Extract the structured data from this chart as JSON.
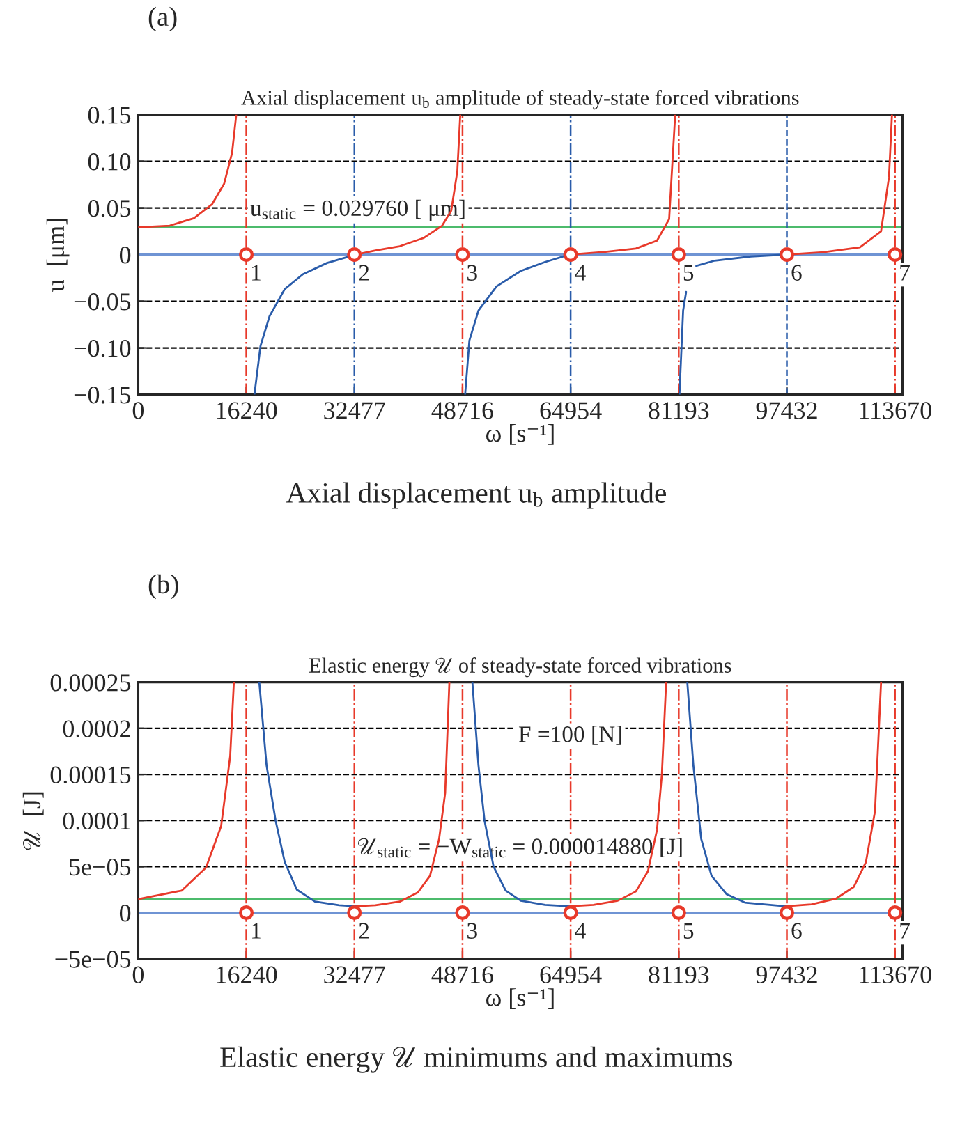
{
  "chart_data": [
    {
      "type": "line",
      "title": "Axial displacement u$_{b}$ amplitude of steady-state forced vibrations",
      "xlabel": "ω [s⁻¹]",
      "ylabel": "u  [μm]",
      "xlim": [
        0,
        114800
      ],
      "xticks": [
        0,
        16240,
        32477,
        48716,
        64954,
        81193,
        97432,
        113670
      ],
      "ylim": [
        -0.15,
        0.15
      ],
      "yticks": [
        {
          "value": -0.15,
          "label": "−0.15"
        },
        {
          "value": -0.1,
          "label": "−0.10"
        },
        {
          "value": -0.05,
          "label": "−0.05"
        },
        0,
        0.05,
        {
          "value": 0.1,
          "label": "0.10"
        },
        0.15
      ],
      "grid": "y",
      "series": [
        {
          "color": "#e8392a",
          "x": [
            0,
            4730,
            8370,
            11100,
            12910,
            14100,
            14730,
            14731,
            32650,
            35650,
            39290,
            42930,
            45650,
            47020,
            47930,
            48380,
            48381,
            64750,
            70210,
            74750,
            77930,
            79750,
            80660,
            80661,
            97220,
            102950,
            108400,
            111580,
            112770,
            113220
          ],
          "values": [
            0.0292,
            0.031,
            0.039,
            0.054,
            0.076,
            0.109,
            0.15,
            null,
            0,
            0.0045,
            0.009,
            0.018,
            0.031,
            0.047,
            0.089,
            0.15,
            null,
            0,
            0.003,
            0.0065,
            0.015,
            0.038,
            0.15,
            null,
            0,
            0.0026,
            0.0078,
            0.025,
            0.083,
            0.15
          ]
        },
        {
          "color": "#2a5caa",
          "x": [
            17460,
            18370,
            19730,
            22010,
            24740,
            28370,
            32650,
            32651,
            49110,
            49750,
            51110,
            53840,
            57470,
            61110,
            64750,
            64751,
            81300,
            81850,
            82300,
            82301,
            83390,
            86580,
            92030,
            97220
          ],
          "values": [
            -0.15,
            -0.098,
            -0.066,
            -0.037,
            -0.021,
            -0.009,
            0,
            null,
            -0.15,
            -0.092,
            -0.06,
            -0.034,
            -0.0175,
            -0.008,
            0,
            null,
            -0.15,
            -0.06,
            -0.04,
            null,
            -0.013,
            -0.0065,
            -0.002,
            0
          ]
        },
        {
          "type": "scatter",
          "color": "#e8392a",
          "marker": "circle",
          "x": [
            16240,
            32477,
            48716,
            64954,
            81193,
            97432,
            113670
          ],
          "values": [
            0,
            0,
            0,
            0,
            0,
            0,
            0
          ]
        }
      ],
      "ref_lines": [
        {
          "axis": "y",
          "value": 0,
          "color": "#6f94d4",
          "line_style": "solid"
        },
        {
          "axis": "y",
          "value": 0.02976,
          "color": "#4cbb6c",
          "line_style": "solid"
        },
        {
          "axis": "x",
          "value": 16240,
          "color": "#e8392a",
          "line_style": "dashdot"
        },
        {
          "axis": "x",
          "value": 32477,
          "color": "#2a5caa",
          "line_style": "dashdot"
        },
        {
          "axis": "x",
          "value": 48716,
          "color": "#e8392a",
          "line_style": "dashdot"
        },
        {
          "axis": "x",
          "value": 64954,
          "color": "#2a5caa",
          "line_style": "dashdot"
        },
        {
          "axis": "x",
          "value": 81193,
          "color": "#e8392a",
          "line_style": "dashdot"
        },
        {
          "axis": "x",
          "value": 97432,
          "color": "#2a5caa",
          "line_style": "dashed"
        },
        {
          "axis": "x",
          "value": 113670,
          "color": "#e8392a",
          "line_style": "dashdot"
        }
      ],
      "annotations": [
        "(a)",
        "Axial displacement u$_{b}$ amplitude",
        {
          "text": "u$_{static}$ = 0.029760 [ μm]",
          "x": 16800,
          "y": 0.036
        },
        {
          "text": "1",
          "x": 16240,
          "y": 0
        },
        {
          "text": "2",
          "x": 32477,
          "y": 0
        },
        {
          "text": "3",
          "x": 48716,
          "y": 0
        },
        {
          "text": "4",
          "x": 64954,
          "y": 0
        },
        {
          "text": "5",
          "x": 81193,
          "y": 0
        },
        {
          "text": "6",
          "x": 97432,
          "y": 0
        },
        {
          "text": "7",
          "x": 113670,
          "y": 0
        }
      ]
    },
    {
      "type": "line",
      "title": "Elastic energy 𝒰 of steady-state forced vibrations",
      "xlabel": "ω [s⁻¹]",
      "ylabel": "𝒰  [J]",
      "xlim": [
        0,
        114800
      ],
      "xticks": [
        0,
        16240,
        32477,
        48716,
        64954,
        81193,
        97432,
        113670
      ],
      "ylim": [
        -5e-05,
        0.00025
      ],
      "yticks": [
        {
          "value": -5e-05,
          "label": "−5e−05"
        },
        0,
        {
          "value": 5e-05,
          "label": "5e−05"
        },
        0.0001,
        0.00015,
        0.0002,
        0.00025
      ],
      "grid": "y",
      "series": [
        {
          "color": "#e8392a",
          "x": [
            0,
            6550,
            10190,
            12460,
            13820,
            14370,
            14371,
            32650,
            35650,
            39290,
            42010,
            43830,
            45200,
            46110,
            46740,
            46741,
            64750,
            68390,
            72030,
            74750,
            76570,
            77930,
            78660,
            79300,
            79301,
            97220,
            101130,
            104760,
            107490,
            109310,
            110670,
            111580
          ],
          "values": [
            1.47e-05,
            2.4e-05,
            4.9e-05,
            9.4e-05,
            0.00017,
            0.00025,
            null,
            7e-06,
            8e-06,
            1.2e-05,
            2.2e-05,
            4e-05,
            8e-05,
            0.00013,
            0.00025,
            null,
            7e-06,
            8.5e-06,
            1.3e-05,
            2.3e-05,
            4.5e-05,
            9e-05,
            0.00015,
            0.00025,
            null,
            7e-06,
            9e-06,
            1.5e-05,
            2.8e-05,
            5.5e-05,
            0.00011,
            0.00025
          ]
        },
        {
          "color": "#2a5caa",
          "x": [
            18190,
            19280,
            20640,
            22010,
            23830,
            26550,
            30190,
            32650,
            32651,
            50200,
            51110,
            52020,
            53380,
            55200,
            57470,
            61110,
            64750,
            64751,
            82480,
            83390,
            84570,
            86120,
            88390,
            91120,
            97220
          ],
          "values": [
            0.00025,
            0.00016,
            0.0001,
            5.5e-05,
            2.5e-05,
            1.2e-05,
            8e-06,
            7e-06,
            null,
            0.00025,
            0.00016,
            0.0001,
            5e-05,
            2.4e-05,
            1.3e-05,
            8.5e-06,
            7e-06,
            null,
            0.00025,
            0.00016,
            8e-05,
            4e-05,
            2e-05,
            1.1e-05,
            7e-06
          ]
        },
        {
          "type": "scatter",
          "color": "#e8392a",
          "marker": "circle",
          "x": [
            16240,
            32477,
            48716,
            64954,
            81193,
            97432,
            113670
          ],
          "values": [
            0,
            0,
            0,
            0,
            0,
            0,
            0
          ]
        }
      ],
      "ref_lines": [
        {
          "axis": "y",
          "value": 0,
          "color": "#6f94d4",
          "line_style": "solid"
        },
        {
          "axis": "y",
          "value": 1.488e-05,
          "color": "#4cbb6c",
          "line_style": "solid"
        },
        {
          "axis": "x",
          "value": 16240,
          "color": "#e8392a",
          "line_style": "dashdot"
        },
        {
          "axis": "x",
          "value": 32477,
          "color": "#e8392a",
          "line_style": "dashdot"
        },
        {
          "axis": "x",
          "value": 48716,
          "color": "#e8392a",
          "line_style": "dashdot"
        },
        {
          "axis": "x",
          "value": 64954,
          "color": "#e8392a",
          "line_style": "dashdot"
        },
        {
          "axis": "x",
          "value": 81193,
          "color": "#e8392a",
          "line_style": "dashdot"
        },
        {
          "axis": "x",
          "value": 97432,
          "color": "#e8392a",
          "line_style": "dashdot"
        },
        {
          "axis": "x",
          "value": 113670,
          "color": "#e8392a",
          "line_style": "dashdot"
        }
      ],
      "annotations": [
        "(b)",
        "Elastic energy 𝒰 minimums and maximums",
        {
          "text": "F =100 [N]",
          "x": 64954,
          "y": 0.00018
        },
        "𝒰$_{static}$ = −W$_{static}$ = 0.000014880 [J]",
        {
          "text": "1",
          "x": 16240,
          "y": 0
        },
        {
          "text": "2",
          "x": 32477,
          "y": 0
        },
        {
          "text": "3",
          "x": 48716,
          "y": 0
        },
        {
          "text": "4",
          "x": 64954,
          "y": 0
        },
        {
          "text": "5",
          "x": 81193,
          "y": 0
        },
        {
          "text": "6",
          "x": 97432,
          "y": 0
        },
        {
          "text": "7",
          "x": 113670,
          "y": 0
        }
      ]
    }
  ]
}
